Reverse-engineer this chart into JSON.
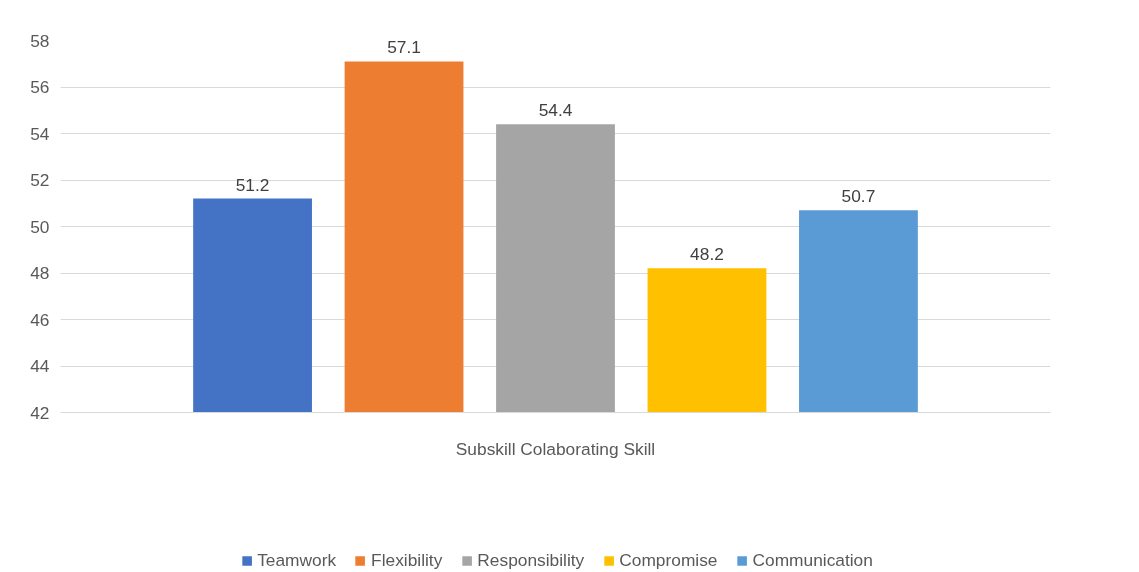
{
  "chart_data": {
    "type": "bar",
    "categories": [
      "Subskill Colaborating Skill"
    ],
    "series": [
      {
        "name": "Teamwork",
        "color": "#4472c4",
        "values": [
          51.2
        ]
      },
      {
        "name": "Flexibility",
        "color": "#ed7d31",
        "values": [
          57.1
        ]
      },
      {
        "name": "Responsibility",
        "color": "#a5a5a5",
        "values": [
          54.4
        ]
      },
      {
        "name": "Compromise",
        "color": "#ffc000",
        "values": [
          48.2
        ]
      },
      {
        "name": "Communication",
        "color": "#5b9bd5",
        "values": [
          50.7
        ]
      }
    ],
    "ylim": [
      42,
      58
    ],
    "yticks": [
      42,
      44,
      46,
      48,
      50,
      52,
      54,
      56,
      58
    ],
    "grid": "y",
    "legend": "bottom",
    "data_labels": true
  }
}
